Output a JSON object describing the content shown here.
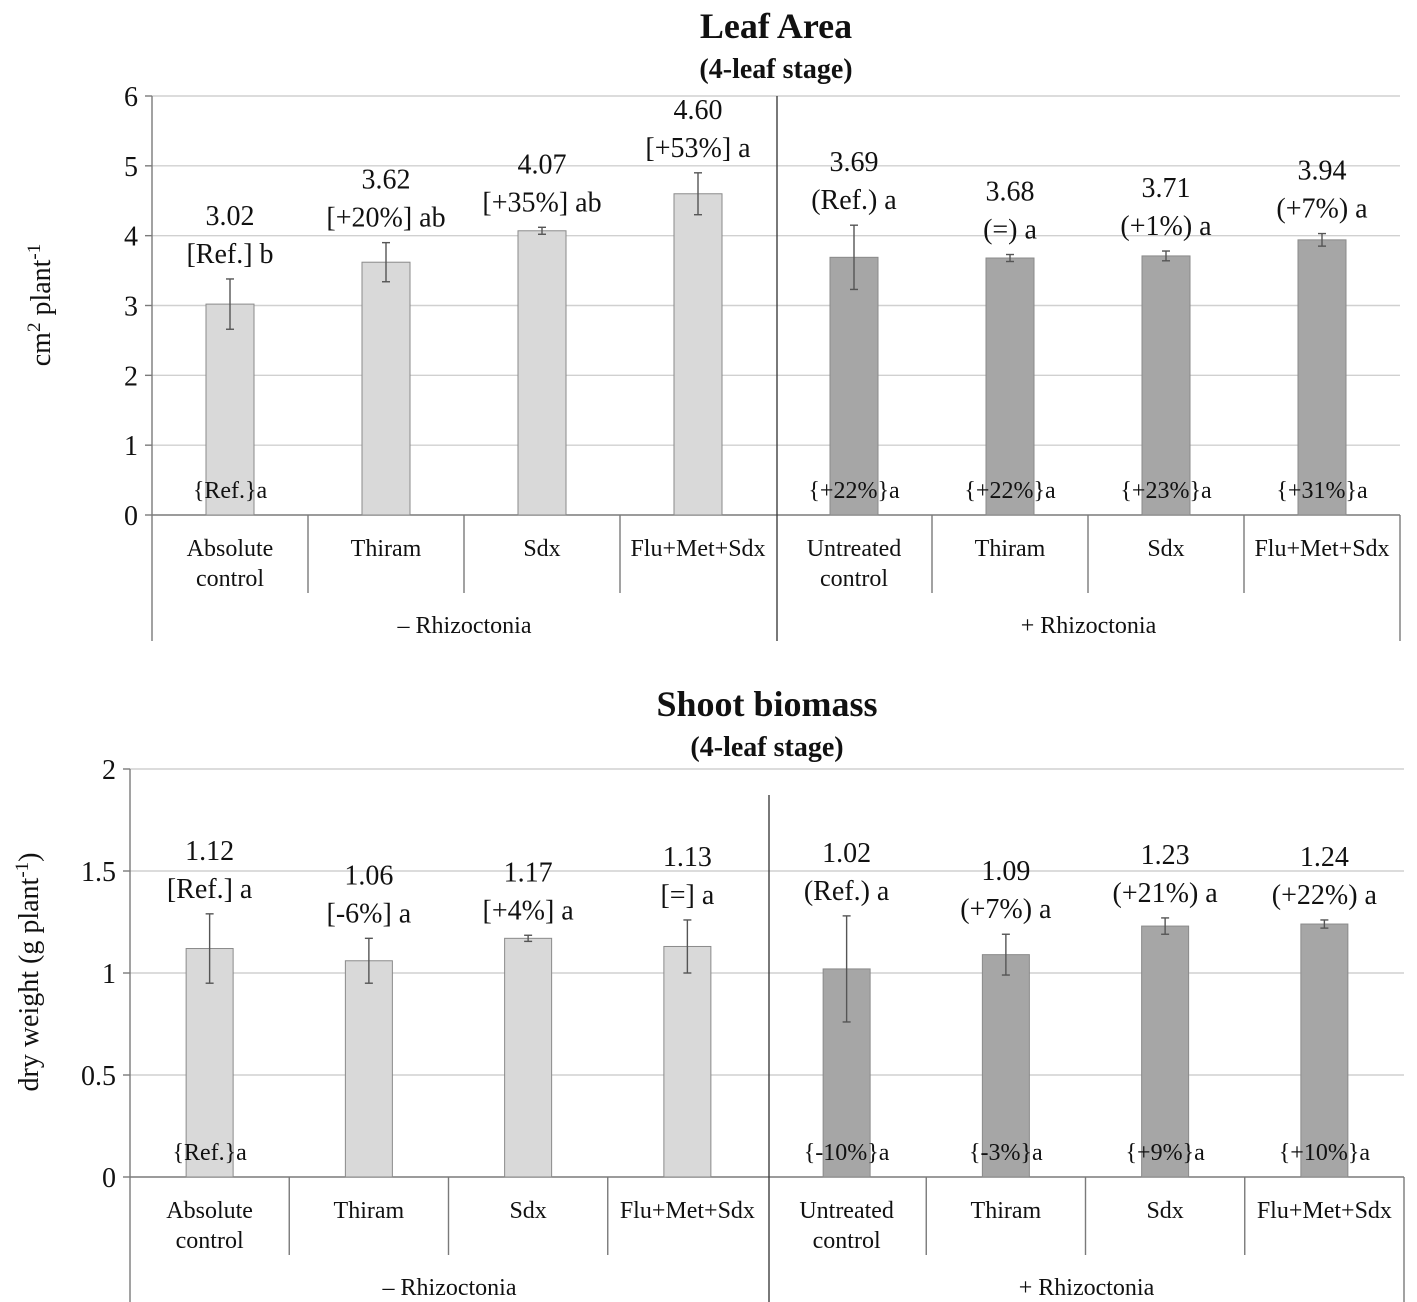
{
  "colors": {
    "minus_bar": "#d9d9d9",
    "plus_bar": "#a6a6a6",
    "bar_outline": "#8a8a8a"
  },
  "chart_data": [
    {
      "type": "bar",
      "title": "Leaf Area",
      "subtitle": "(4-leaf stage)",
      "ylabel_main": "cm",
      "ylabel_sup2": "2",
      "ylabel_rest": " plant",
      "ylabel_sup": "-1",
      "ylim": [
        0,
        6
      ],
      "yticks": [
        "0",
        "1",
        "2",
        "3",
        "4",
        "5",
        "6"
      ],
      "grid": true,
      "groups": [
        "– Rhizoctonia",
        "+ Rhizoctonia"
      ],
      "categories": [
        [
          "Absolute",
          "control"
        ],
        [
          "Thiram"
        ],
        [
          "Sdx"
        ],
        [
          "Flu+Met+Sdx"
        ],
        [
          "Untreated",
          "control"
        ],
        [
          "Thiram"
        ],
        [
          "Sdx"
        ],
        [
          "Flu+Met+Sdx"
        ]
      ],
      "values": [
        3.02,
        3.62,
        4.07,
        4.6,
        3.69,
        3.68,
        3.71,
        3.94
      ],
      "errors": [
        0.36,
        0.28,
        0.05,
        0.3,
        0.46,
        0.05,
        0.07,
        0.09
      ],
      "value_labels": [
        "3.02",
        "3.62",
        "4.07",
        "4.60",
        "3.69",
        "3.68",
        "3.71",
        "3.94"
      ],
      "comparison_labels": [
        "[Ref.] b",
        "[+20%] ab",
        "[+35%] ab",
        "[+53%] a",
        "(Ref.) a",
        "(=) a",
        "(+1%) a",
        "(+7%) a"
      ],
      "bottom_labels": [
        "{Ref.}a",
        "",
        "",
        "",
        "{+22%}a",
        "{+22%}a",
        "{+23%}a",
        "{+31%}a"
      ]
    },
    {
      "type": "bar",
      "title": "Shoot biomass",
      "subtitle": "(4-leaf stage)",
      "ylabel_main": "dry weight (g plant",
      "ylabel_sup": "-1",
      "ylabel_close": ")",
      "ylim": [
        0,
        2
      ],
      "yticks": [
        "0",
        "0.5",
        "1",
        "1.5",
        "2"
      ],
      "grid": true,
      "groups": [
        "– Rhizoctonia",
        "+ Rhizoctonia"
      ],
      "categories": [
        [
          "Absolute",
          "control"
        ],
        [
          "Thiram"
        ],
        [
          "Sdx"
        ],
        [
          "Flu+Met+Sdx"
        ],
        [
          "Untreated",
          "control"
        ],
        [
          "Thiram"
        ],
        [
          "Sdx"
        ],
        [
          "Flu+Met+Sdx"
        ]
      ],
      "values": [
        1.12,
        1.06,
        1.17,
        1.13,
        1.02,
        1.09,
        1.23,
        1.24
      ],
      "errors": [
        0.17,
        0.11,
        0.015,
        0.13,
        0.26,
        0.1,
        0.04,
        0.02
      ],
      "value_labels": [
        "1.12",
        "1.06",
        "1.17",
        "1.13",
        "1.02",
        "1.09",
        "1.23",
        "1.24"
      ],
      "comparison_labels": [
        "[Ref.] a",
        "[-6%] a",
        "[+4%] a",
        "[=] a",
        "(Ref.) a",
        "(+7%) a",
        "(+21%) a",
        "(+22%) a"
      ],
      "bottom_labels": [
        "{Ref.}a",
        "",
        "",
        "",
        "{-10%}a",
        "{-3%}a",
        "{+9%}a",
        "{+10%}a"
      ]
    }
  ]
}
